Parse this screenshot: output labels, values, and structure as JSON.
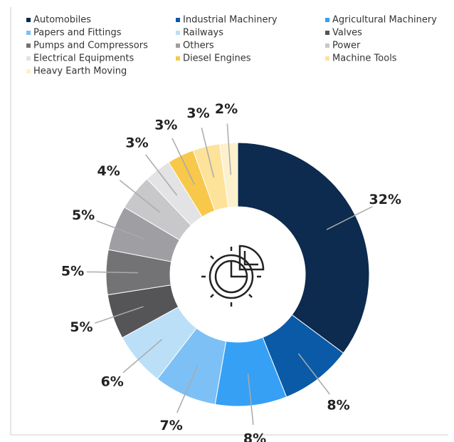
{
  "chart_data": {
    "type": "donut",
    "categories": [
      "Automobiles",
      "Industrial Machinery",
      "Agricultural Machinery",
      "Papers and Fittings",
      "Railways",
      "Valves",
      "Pumps and Compressors",
      "Others",
      "Power",
      "Electrical Equipments",
      "Diesel Engines",
      "Machine Tools",
      "Heavy Earth Moving"
    ],
    "values": [
      32,
      8,
      8,
      7,
      6,
      5,
      5,
      5,
      4,
      3,
      3,
      3,
      2
    ],
    "value_labels": [
      "32%",
      "8%",
      "8%",
      "7%",
      "6%",
      "5%",
      "5%",
      "5%",
      "4%",
      "3%",
      "3%",
      "3%",
      "2%"
    ],
    "colors": [
      "#0d2a4f",
      "#0a5aa8",
      "#36a0f5",
      "#7cc0f5",
      "#bcdff8",
      "#555558",
      "#737376",
      "#9e9ea3",
      "#c8c8ca",
      "#e3e3e5",
      "#f8c84a",
      "#fde29a",
      "#fdf0cc"
    ],
    "legend": "top"
  }
}
